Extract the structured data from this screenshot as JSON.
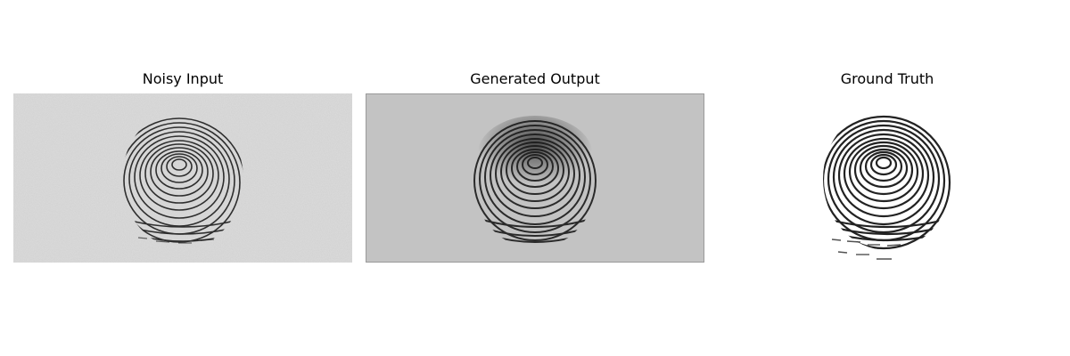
{
  "figure": {
    "panels": [
      {
        "title": "Noisy Input",
        "image": "fingerprint-noisy",
        "background": "#dcdcdc",
        "ink": "#111111"
      },
      {
        "title": "Generated Output",
        "image": "fingerprint-generated",
        "background": "#c3c3c3",
        "ink": "#1a1a1a"
      },
      {
        "title": "Ground Truth",
        "image": "fingerprint-ground-truth",
        "background": "#ffffff",
        "ink": "#0a0a0a"
      }
    ]
  }
}
